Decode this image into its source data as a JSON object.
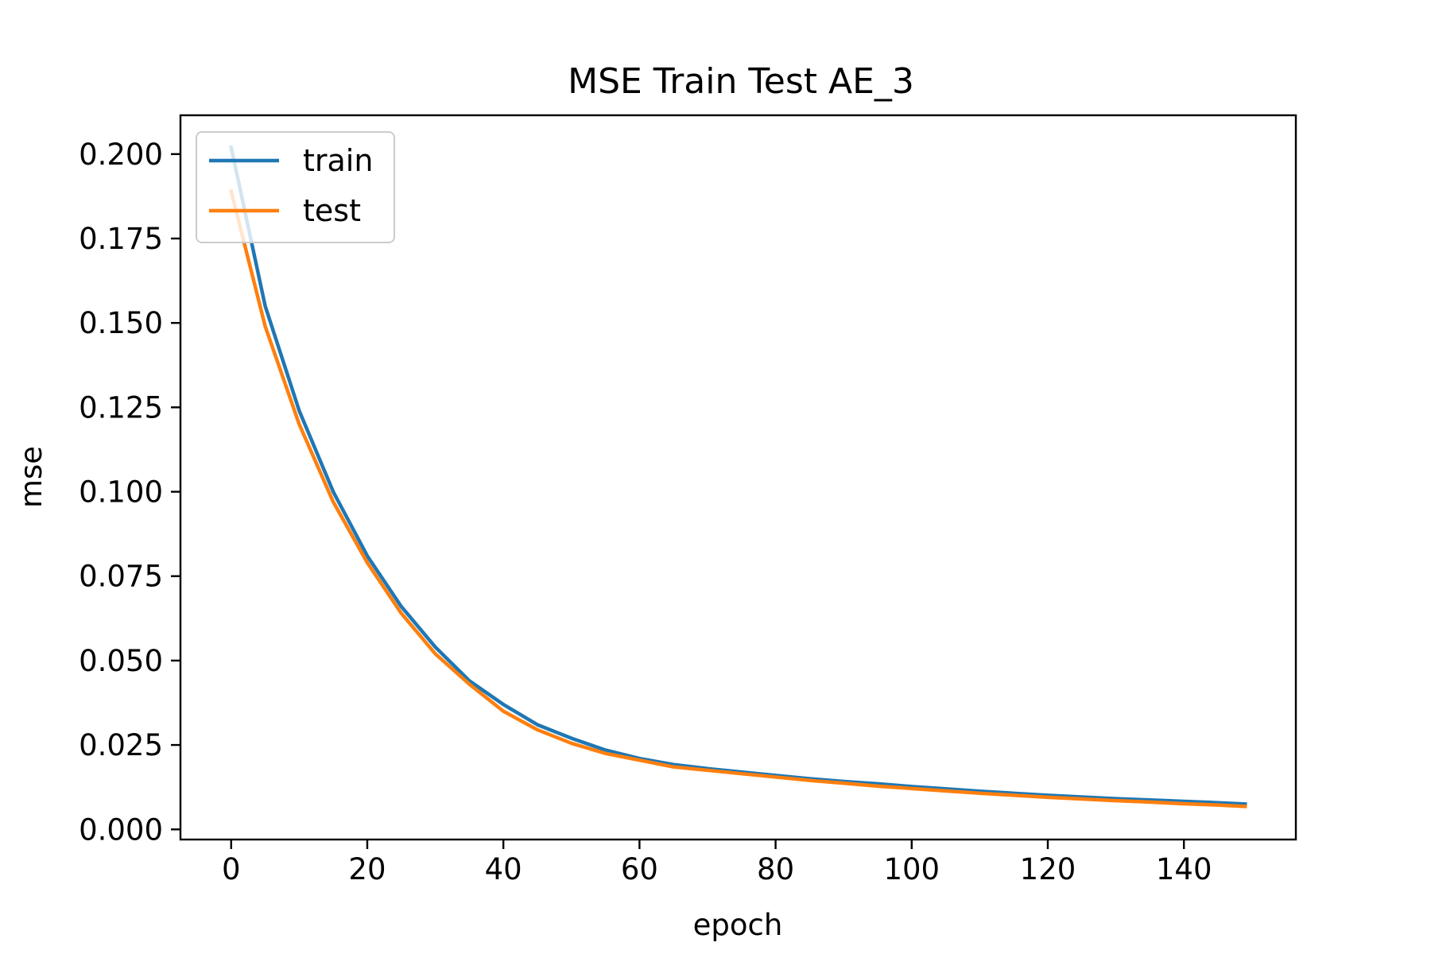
{
  "chart_data": {
    "type": "line",
    "title": "MSE Train Test AE_3",
    "xlabel": "epoch",
    "ylabel": "mse",
    "xlim": [
      -7.45,
      156.45
    ],
    "ylim": [
      -0.003,
      0.2115
    ],
    "xticks": [
      0,
      20,
      40,
      60,
      80,
      100,
      120,
      140
    ],
    "xtick_labels": [
      "0",
      "20",
      "40",
      "60",
      "80",
      "100",
      "120",
      "140"
    ],
    "yticks": [
      0.0,
      0.025,
      0.05,
      0.075,
      0.1,
      0.125,
      0.15,
      0.175,
      0.2
    ],
    "ytick_labels": [
      "0.000",
      "0.025",
      "0.050",
      "0.075",
      "0.100",
      "0.125",
      "0.150",
      "0.175",
      "0.200"
    ],
    "grid": false,
    "legend_position": "top-left",
    "x": [
      0,
      5,
      10,
      15,
      20,
      25,
      30,
      35,
      40,
      45,
      50,
      55,
      60,
      65,
      70,
      75,
      80,
      85,
      90,
      95,
      100,
      105,
      110,
      115,
      120,
      125,
      130,
      135,
      140,
      145,
      149
    ],
    "series": [
      {
        "name": "train",
        "color": "#1f77b4",
        "values": [
          0.202,
          0.155,
          0.124,
          0.1,
          0.081,
          0.066,
          0.054,
          0.044,
          0.037,
          0.031,
          0.027,
          0.0235,
          0.021,
          0.0192,
          0.018,
          0.017,
          0.016,
          0.015,
          0.0142,
          0.0135,
          0.0127,
          0.012,
          0.0113,
          0.0107,
          0.0101,
          0.0096,
          0.0091,
          0.0087,
          0.0083,
          0.0079,
          0.0075
        ]
      },
      {
        "name": "test",
        "color": "#ff7f0e",
        "values": [
          0.189,
          0.149,
          0.12,
          0.097,
          0.079,
          0.064,
          0.052,
          0.043,
          0.035,
          0.0295,
          0.0255,
          0.0225,
          0.0205,
          0.0185,
          0.0175,
          0.0165,
          0.0155,
          0.0145,
          0.0137,
          0.0128,
          0.0121,
          0.0114,
          0.0107,
          0.0101,
          0.0095,
          0.009,
          0.0085,
          0.0081,
          0.0076,
          0.0072,
          0.0068
        ]
      }
    ]
  }
}
